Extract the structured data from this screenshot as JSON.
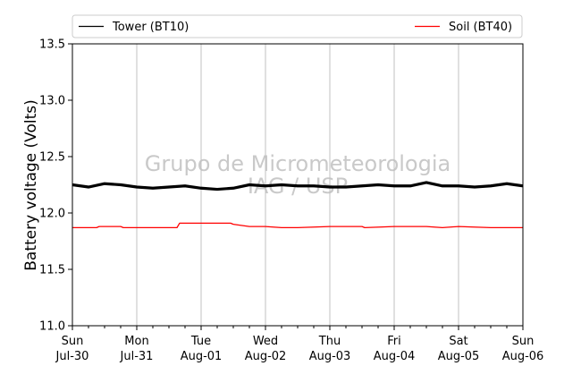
{
  "chart_data": {
    "type": "line",
    "ylabel": "Battery voltage (Volts)",
    "ylim": [
      11.0,
      13.5
    ],
    "yticks": [
      11.0,
      11.5,
      12.0,
      12.5,
      13.0,
      13.5
    ],
    "ytick_labels": [
      "11.0",
      "11.5",
      "12.0",
      "12.5",
      "13.0",
      "13.5"
    ],
    "xlim": [
      "2017-07-30",
      "2017-08-06"
    ],
    "xticks": [
      {
        "date": "2017-07-30",
        "day": "Sun",
        "label": "Jul-30"
      },
      {
        "date": "2017-07-31",
        "day": "Mon",
        "label": "Jul-31"
      },
      {
        "date": "2017-08-01",
        "day": "Tue",
        "label": "Aug-01"
      },
      {
        "date": "2017-08-02",
        "day": "Wed",
        "label": "Aug-02"
      },
      {
        "date": "2017-08-03",
        "day": "Thu",
        "label": "Aug-03"
      },
      {
        "date": "2017-08-04",
        "day": "Fri",
        "label": "Aug-04"
      },
      {
        "date": "2017-08-05",
        "day": "Sat",
        "label": "Aug-05"
      },
      {
        "date": "2017-08-06",
        "day": "Sun",
        "label": "Aug-06"
      }
    ],
    "grid": "vertical",
    "legend_placement": "top",
    "watermark": [
      "Grupo de Micrometeorologia",
      "IAG / USP"
    ],
    "series": [
      {
        "name": "Tower (BT10)",
        "color": "#000000",
        "x": [
          "2017-07-30 00:00",
          "2017-07-30 06:00",
          "2017-07-30 12:00",
          "2017-07-30 18:00",
          "2017-07-31 00:00",
          "2017-07-31 06:00",
          "2017-07-31 12:00",
          "2017-07-31 18:00",
          "2017-08-01 00:00",
          "2017-08-01 06:00",
          "2017-08-01 12:00",
          "2017-08-01 18:00",
          "2017-08-02 00:00",
          "2017-08-02 06:00",
          "2017-08-02 12:00",
          "2017-08-02 18:00",
          "2017-08-03 00:00",
          "2017-08-03 06:00",
          "2017-08-03 12:00",
          "2017-08-03 18:00",
          "2017-08-04 00:00",
          "2017-08-04 06:00",
          "2017-08-04 12:00",
          "2017-08-04 18:00",
          "2017-08-05 00:00",
          "2017-08-05 06:00",
          "2017-08-05 12:00",
          "2017-08-05 18:00",
          "2017-08-06 00:00"
        ],
        "y": [
          12.25,
          12.23,
          12.26,
          12.25,
          12.23,
          12.22,
          12.23,
          12.24,
          12.22,
          12.21,
          12.22,
          12.25,
          12.24,
          12.25,
          12.24,
          12.24,
          12.23,
          12.23,
          12.24,
          12.25,
          12.24,
          12.24,
          12.27,
          12.24,
          12.24,
          12.23,
          12.24,
          12.26,
          12.24
        ]
      },
      {
        "name": "Soil (BT40)",
        "color": "#ff0000",
        "x": [
          "2017-07-30 00:00",
          "2017-07-30 09:00",
          "2017-07-30 10:00",
          "2017-07-30 18:00",
          "2017-07-30 19:00",
          "2017-07-31 00:00",
          "2017-07-31 12:00",
          "2017-07-31 15:00",
          "2017-07-31 16:00",
          "2017-08-01 11:00",
          "2017-08-01 12:00",
          "2017-08-01 18:00",
          "2017-08-02 00:00",
          "2017-08-02 06:00",
          "2017-08-02 12:00",
          "2017-08-03 00:00",
          "2017-08-03 12:00",
          "2017-08-03 13:00",
          "2017-08-04 00:00",
          "2017-08-04 12:00",
          "2017-08-04 18:00",
          "2017-08-05 00:00",
          "2017-08-05 12:00",
          "2017-08-05 14:00",
          "2017-08-06 00:00"
        ],
        "y": [
          11.87,
          11.87,
          11.88,
          11.88,
          11.87,
          11.87,
          11.87,
          11.87,
          11.91,
          11.91,
          11.9,
          11.88,
          11.88,
          11.87,
          11.87,
          11.88,
          11.88,
          11.87,
          11.88,
          11.88,
          11.87,
          11.88,
          11.87,
          11.87,
          11.87
        ]
      }
    ]
  }
}
